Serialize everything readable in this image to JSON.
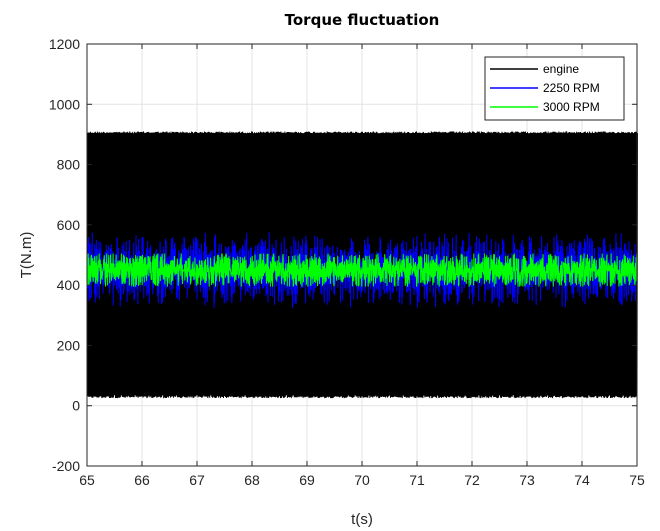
{
  "chart_data": {
    "type": "line",
    "title": "Torque fluctuation",
    "xlabel": "t(s)",
    "ylabel": "T(N.m)",
    "xlim": [
      65,
      75
    ],
    "ylim": [
      -200,
      1200
    ],
    "xticks": [
      65,
      66,
      67,
      68,
      69,
      70,
      71,
      72,
      73,
      74,
      75
    ],
    "yticks": [
      -200,
      0,
      200,
      400,
      600,
      800,
      1000,
      1200
    ],
    "grid": true,
    "legend_position": "top-right",
    "series": [
      {
        "name": "engine",
        "color": "#000000",
        "description_stats": {
          "min": 25,
          "max": 910,
          "mean": 450,
          "oscillation": "dense periodic"
        },
        "samples": [
          {
            "t": 65.0,
            "T": 910
          },
          {
            "t": 65.05,
            "T": 30
          },
          {
            "t": 65.1,
            "T": 905
          },
          {
            "t": 65.15,
            "T": 28
          },
          {
            "t": 70.0,
            "T": 910
          },
          {
            "t": 70.05,
            "T": 25
          },
          {
            "t": 75.0,
            "T": 910
          }
        ]
      },
      {
        "name": "2250 RPM",
        "color": "#0000ff",
        "description_stats": {
          "min": 320,
          "max": 575,
          "mean": 450
        }
      },
      {
        "name": "3000 RPM",
        "color": "#00ff00",
        "description_stats": {
          "min": 395,
          "max": 505,
          "mean": 450
        }
      }
    ]
  }
}
